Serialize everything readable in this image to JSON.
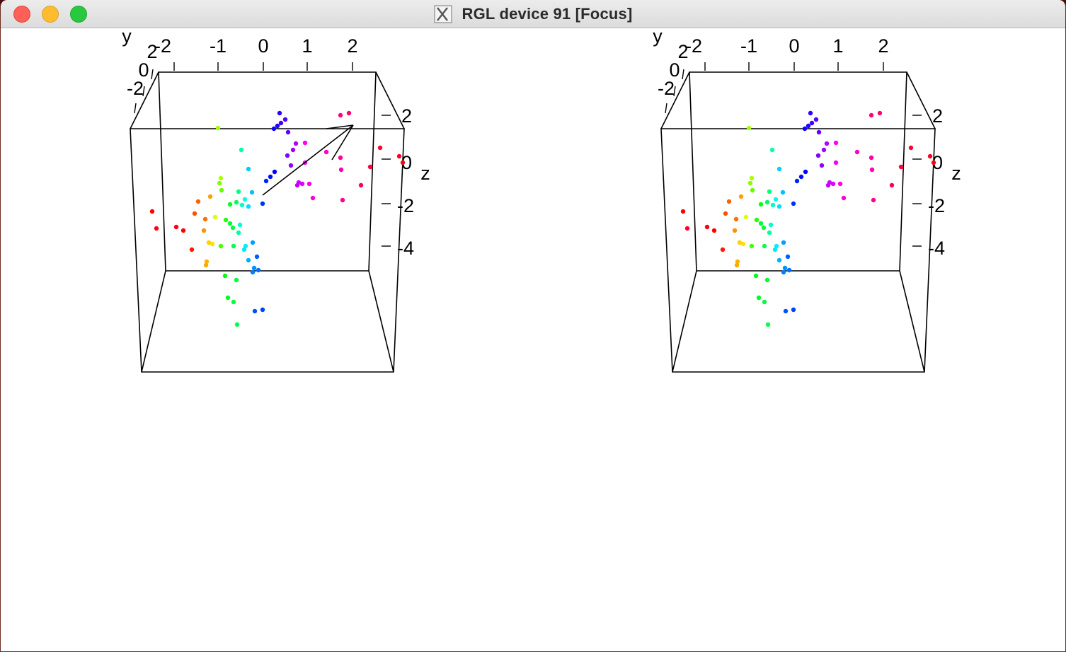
{
  "window": {
    "title": "RGL device 91 [Focus]",
    "buttons": {
      "close": "close-icon",
      "minimize": "minimize-icon",
      "zoom": "zoom-icon"
    },
    "app_icon": "x11-icon"
  },
  "plots": [
    {
      "id": "left",
      "x_label": "y",
      "z_label": "z",
      "top_ticks": [
        "-2",
        "-1",
        "0",
        "1",
        "2"
      ],
      "depth_ticks": [
        "2",
        "0",
        "-2"
      ],
      "z_ticks": [
        "2",
        "0",
        "-2",
        "-4"
      ],
      "has_arrow": true
    },
    {
      "id": "right",
      "x_label": "y",
      "z_label": "z",
      "top_ticks": [
        "-2",
        "-1",
        "0",
        "1",
        "2"
      ],
      "depth_ticks": [
        "2",
        "0",
        "-2"
      ],
      "z_ticks": [
        "2",
        "0",
        "-2",
        "-4"
      ],
      "has_arrow": false
    }
  ],
  "colors": {
    "box_line": "#000000",
    "background": "#ffffff"
  }
}
